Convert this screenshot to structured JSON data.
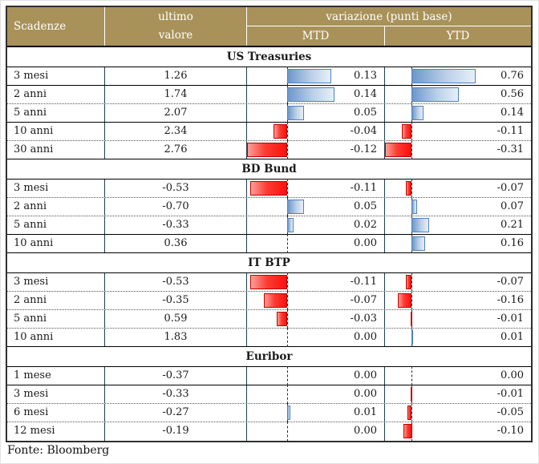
{
  "header": {
    "col_maturity": "Scadenze",
    "col_last_line1": "ultimo",
    "col_last_line2": "valore",
    "col_variation": "variazione (punti base)",
    "col_mtd": "MTD",
    "col_ytd": "YTD"
  },
  "footer": {
    "source": "Fonte: Bloomberg"
  },
  "colors": {
    "header_bg": "#a8925a",
    "positive_bar_border": "#4f81bd",
    "positive_bar_fill": "#6d97ca",
    "negative_bar_border": "#c00000",
    "negative_bar_fill": "#fb100c",
    "grid_vertical": "#1c3f52"
  },
  "chart_data": {
    "type": "table",
    "title": "variazione (punti base)",
    "columns": [
      "Scadenze",
      "ultimo valore",
      "MTD",
      "YTD"
    ],
    "bar_columns": {
      "mtd": {
        "min": -0.12,
        "max": 0.14,
        "positive_color": "blue",
        "negative_color": "red"
      },
      "ytd": {
        "min": -0.31,
        "max": 0.76,
        "positive_color": "blue",
        "negative_color": "red"
      }
    },
    "sections": [
      {
        "title": "US Treasuries",
        "rows": [
          {
            "maturity": "3 mesi",
            "value": 1.26,
            "mtd": 0.13,
            "ytd": 0.76,
            "sep": "solid"
          },
          {
            "maturity": "2 anni",
            "value": 1.74,
            "mtd": 0.14,
            "ytd": 0.56,
            "sep": "dotted"
          },
          {
            "maturity": "5 anni",
            "value": 2.07,
            "mtd": 0.05,
            "ytd": 0.14,
            "sep": "solid"
          },
          {
            "maturity": "10 anni",
            "value": 2.34,
            "mtd": -0.04,
            "ytd": -0.11,
            "sep": "dotted"
          },
          {
            "maturity": "30 anni",
            "value": 2.76,
            "mtd": -0.12,
            "ytd": -0.31,
            "sep": "solid"
          }
        ]
      },
      {
        "title": "BD Bund",
        "rows": [
          {
            "maturity": "3 mesi",
            "value": -0.53,
            "mtd": -0.11,
            "ytd": -0.07,
            "sep": "dotted"
          },
          {
            "maturity": "2 anni",
            "value": -0.7,
            "mtd": 0.05,
            "ytd": 0.07,
            "sep": "dotted"
          },
          {
            "maturity": "5 anni",
            "value": -0.33,
            "mtd": 0.02,
            "ytd": 0.21,
            "sep": "solid"
          },
          {
            "maturity": "10 anni",
            "value": 0.36,
            "mtd": 0.0,
            "ytd": 0.16,
            "sep": "solid"
          }
        ]
      },
      {
        "title": "IT BTP",
        "rows": [
          {
            "maturity": "3 mesi",
            "value": -0.53,
            "mtd": -0.11,
            "ytd": -0.07,
            "sep": "dotted"
          },
          {
            "maturity": "2 anni",
            "value": -0.35,
            "mtd": -0.07,
            "ytd": -0.16,
            "sep": "dotted"
          },
          {
            "maturity": "5 anni",
            "value": 0.59,
            "mtd": -0.03,
            "ytd": -0.01,
            "sep": "dotted"
          },
          {
            "maturity": "10 anni",
            "value": 1.83,
            "mtd": 0.0,
            "ytd": 0.01,
            "sep": "solid"
          }
        ]
      },
      {
        "title": "Euribor",
        "rows": [
          {
            "maturity": "1 mese",
            "value": -0.37,
            "mtd": 0.0,
            "ytd": 0.0,
            "sep": "solid"
          },
          {
            "maturity": "3 mesi",
            "value": -0.33,
            "mtd": 0.0,
            "ytd": -0.01,
            "sep": "dotted"
          },
          {
            "maturity": "6 mesi",
            "value": -0.27,
            "mtd": 0.01,
            "ytd": -0.05,
            "sep": "dotted"
          },
          {
            "maturity": "12 mesi",
            "value": -0.19,
            "mtd": 0.0,
            "ytd": -0.1,
            "sep": "none"
          }
        ]
      }
    ]
  }
}
